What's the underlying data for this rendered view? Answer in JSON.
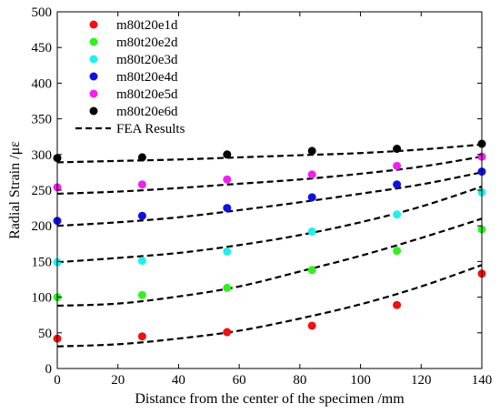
{
  "chart_data": {
    "type": "scatter",
    "title": "",
    "xlabel": "Distance from the center of the specimen /mm",
    "ylabel": "Radial Strain /με",
    "xlim": [
      0,
      140
    ],
    "ylim": [
      0,
      500
    ],
    "xticks": [
      0,
      20,
      40,
      60,
      80,
      100,
      120,
      140
    ],
    "yticks": [
      0,
      50,
      100,
      150,
      200,
      250,
      300,
      350,
      400,
      450,
      500
    ],
    "grid": false,
    "legend_position": "top-left",
    "x": [
      0,
      28,
      56,
      84,
      112,
      140
    ],
    "series": [
      {
        "name": "m80t20e1d",
        "color": "#ee1111",
        "marker": "circle",
        "values": [
          42,
          45,
          51,
          60,
          89,
          133
        ]
      },
      {
        "name": "m80t20e2d",
        "color": "#33ee22",
        "marker": "circle",
        "values": [
          100,
          103,
          113,
          138,
          165,
          195
        ]
      },
      {
        "name": "m80t20e3d",
        "color": "#22eeee",
        "marker": "circle",
        "values": [
          149,
          151,
          164,
          192,
          216,
          247
        ]
      },
      {
        "name": "m80t20e4d",
        "color": "#1111dd",
        "marker": "circle",
        "values": [
          207,
          214,
          225,
          240,
          258,
          276
        ]
      },
      {
        "name": "m80t20e5d",
        "color": "#ee22ee",
        "marker": "circle",
        "values": [
          254,
          258,
          265,
          272,
          284,
          297
        ]
      },
      {
        "name": "m80t20e6d",
        "color": "#000000",
        "marker": "circle",
        "values": [
          295,
          296,
          300,
          305,
          308,
          315
        ]
      }
    ],
    "fea_results": {
      "name": "FEA Results",
      "style": "dashed",
      "color": "#000000",
      "x": [
        0,
        20,
        40,
        60,
        80,
        100,
        120,
        140
      ],
      "curves": [
        [
          31,
          34,
          42,
          53,
          70,
          90,
          115,
          145
        ],
        [
          88,
          91,
          101,
          115,
          136,
          158,
          183,
          210
        ],
        [
          149,
          155,
          162,
          173,
          187,
          205,
          227,
          255
        ],
        [
          200,
          205,
          212,
          222,
          233,
          245,
          258,
          275
        ],
        [
          245,
          248,
          253,
          259,
          265,
          273,
          283,
          297
        ],
        [
          289,
          291,
          293,
          296,
          299,
          302,
          307,
          314
        ]
      ]
    }
  }
}
